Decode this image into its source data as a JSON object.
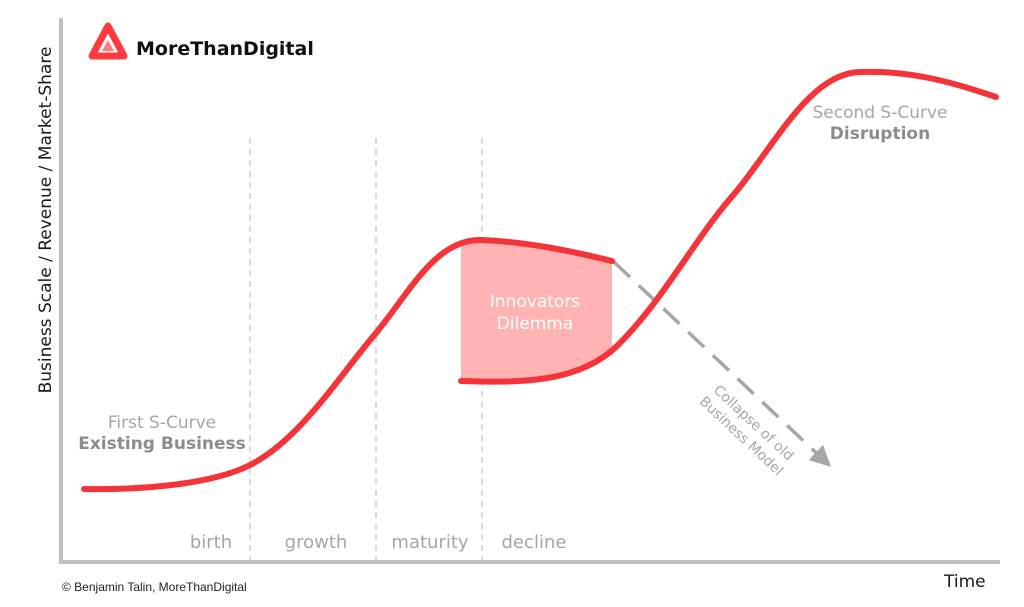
{
  "brand": {
    "name": "MoreThanDigital",
    "logo_icon": "triangle-logo-icon",
    "accent_color": "#ff3a3f"
  },
  "axes": {
    "y_label": "Business Scale / Revenue / Market-Share",
    "x_label": "Time"
  },
  "phases": [
    "birth",
    "growth",
    "maturity",
    "decline"
  ],
  "curves": {
    "first": {
      "line1": "First S-Curve",
      "line2": "Existing Business"
    },
    "second": {
      "line1": "Second S-Curve",
      "line2": "Disruption"
    }
  },
  "dilemma": {
    "line1": "Innovators",
    "line2": "Dilemma",
    "fill_color": "#ffb3b3"
  },
  "collapse": {
    "line1": "Collapse of old",
    "line2": "Business Model"
  },
  "footer": {
    "copyright": "© Benjamin Talin, MoreThanDigital"
  },
  "colors": {
    "curve": "#f5343a",
    "axis": "#bfbfbf",
    "divider": "#cfcfcf",
    "collapse_arrow": "#a6a6a6"
  }
}
